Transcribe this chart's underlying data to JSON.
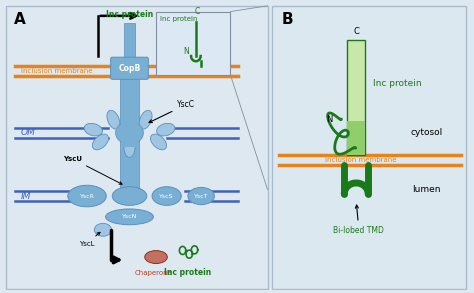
{
  "bg_color": "#dde8f0",
  "panel_a_bg": "#dde8f0",
  "panel_b_bg": "#dce8f0",
  "blue_main": "#7aafd4",
  "blue_light": "#9ec5e2",
  "blue_dark": "#5a90be",
  "orange_membrane": "#e8821a",
  "blue_line": "#4060c0",
  "green_dark": "#1a7a1a",
  "green_light": "#8fce6a",
  "green_lighter": "#c8e8a8",
  "red_brown_fill": "#c47060",
  "red_brown_edge": "#8b3020",
  "title_A": "A",
  "title_B": "B",
  "inc_protein_label": "Inc protein",
  "copb_label": "CopB",
  "yscc_label": "YscC",
  "om_label": "OM",
  "im_label": "IM",
  "yscr_label": "YscR",
  "yscs_label": "YscS",
  "ysct_label": "YscT",
  "yscn_label": "YscN",
  "yscl_label": "YscL",
  "yscu_label": "YscU",
  "chaperone_label": "Chaperone",
  "inc_protein_label2": "Inc protein",
  "inclusion_membrane_label": "inclusion membrane",
  "cytosol_label": "cytosol",
  "inclusion_membrane_label2": "inclusion membrane",
  "lumen_label": "lumen",
  "bi_lobed_label": "Bi-lobed TMD",
  "c_label": "C",
  "n_label": "N",
  "c_label2": "C",
  "n_label2": "N"
}
